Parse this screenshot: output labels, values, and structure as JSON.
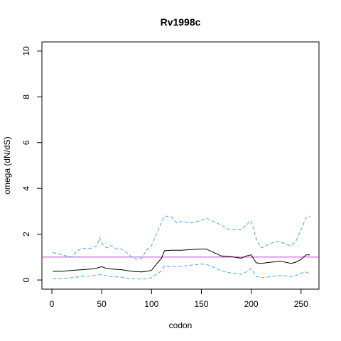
{
  "chart_data": {
    "type": "line",
    "title": "Rv1998c",
    "xlabel": "codon",
    "ylabel": "omega (dN/dS)",
    "xlim": [
      -10,
      268
    ],
    "ylim": [
      -0.4,
      10.4
    ],
    "xticks": [
      0,
      50,
      100,
      150,
      200,
      250
    ],
    "yticks": [
      0,
      2,
      4,
      6,
      8,
      10
    ],
    "grid": false,
    "reference_line": {
      "y": 1,
      "color": "#cc44cc"
    },
    "series": [
      {
        "role": "estimate",
        "color": "#000000",
        "style": "solid",
        "x": [
          1,
          10,
          20,
          30,
          40,
          45,
          50,
          55,
          60,
          70,
          80,
          90,
          95,
          100,
          105,
          110,
          113,
          120,
          130,
          140,
          150,
          155,
          160,
          170,
          180,
          190,
          195,
          200,
          205,
          210,
          215,
          220,
          230,
          240,
          245,
          250,
          255,
          259
        ],
        "y": [
          0.38,
          0.38,
          0.42,
          0.45,
          0.48,
          0.52,
          0.58,
          0.5,
          0.48,
          0.45,
          0.38,
          0.35,
          0.38,
          0.42,
          0.7,
          0.95,
          1.28,
          1.3,
          1.3,
          1.33,
          1.35,
          1.35,
          1.25,
          1.05,
          1.02,
          0.95,
          1.05,
          1.1,
          0.75,
          0.72,
          0.75,
          0.78,
          0.82,
          0.72,
          0.78,
          0.9,
          1.1,
          1.1
        ]
      },
      {
        "role": "upper-bound",
        "color": "#3ea8e8",
        "style": "dashed",
        "x": [
          1,
          10,
          20,
          25,
          30,
          35,
          40,
          45,
          48,
          50,
          55,
          60,
          65,
          70,
          75,
          80,
          85,
          90,
          95,
          100,
          105,
          110,
          113,
          120,
          125,
          130,
          140,
          150,
          155,
          160,
          170,
          175,
          180,
          190,
          195,
          200,
          205,
          210,
          215,
          220,
          225,
          230,
          235,
          240,
          245,
          250,
          255,
          259
        ],
        "y": [
          1.2,
          1.1,
          1.0,
          1.25,
          1.4,
          1.35,
          1.4,
          1.5,
          1.85,
          1.6,
          1.4,
          1.5,
          1.35,
          1.35,
          1.2,
          1.0,
          0.9,
          0.95,
          1.3,
          1.5,
          2.0,
          2.5,
          2.8,
          2.75,
          2.5,
          2.55,
          2.5,
          2.6,
          2.7,
          2.6,
          2.4,
          2.25,
          2.2,
          2.2,
          2.4,
          2.6,
          1.8,
          1.4,
          1.5,
          1.6,
          1.7,
          1.65,
          1.55,
          1.5,
          1.7,
          2.2,
          2.7,
          2.8
        ]
      },
      {
        "role": "lower-bound",
        "color": "#3ea8e8",
        "style": "dashed",
        "x": [
          1,
          10,
          20,
          30,
          40,
          45,
          50,
          55,
          60,
          70,
          80,
          90,
          95,
          100,
          105,
          110,
          113,
          120,
          130,
          140,
          150,
          155,
          160,
          170,
          175,
          180,
          190,
          195,
          200,
          205,
          210,
          220,
          230,
          240,
          245,
          250,
          255,
          259
        ],
        "y": [
          0.05,
          0.05,
          0.1,
          0.15,
          0.18,
          0.2,
          0.25,
          0.18,
          0.15,
          0.12,
          0.05,
          0.04,
          0.05,
          0.1,
          0.25,
          0.4,
          0.6,
          0.58,
          0.6,
          0.65,
          0.7,
          0.68,
          0.6,
          0.4,
          0.35,
          0.3,
          0.25,
          0.35,
          0.5,
          0.15,
          0.1,
          0.15,
          0.2,
          0.15,
          0.2,
          0.3,
          0.35,
          0.25
        ]
      }
    ]
  }
}
